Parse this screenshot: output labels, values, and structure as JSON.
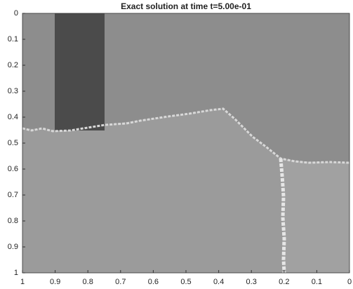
{
  "chart_data": {
    "type": "image",
    "title": "Exact solution at time t=5.00e-01",
    "xlim": [
      1,
      0
    ],
    "ylim": [
      0,
      1
    ],
    "xticks": [
      1,
      0.9,
      0.8,
      0.7,
      0.6,
      0.5,
      0.4,
      0.3,
      0.2,
      0.1,
      0
    ],
    "yticks": [
      0,
      0.1,
      0.2,
      0.3,
      0.4,
      0.5,
      0.6,
      0.7,
      0.8,
      0.9,
      1
    ]
  }
}
